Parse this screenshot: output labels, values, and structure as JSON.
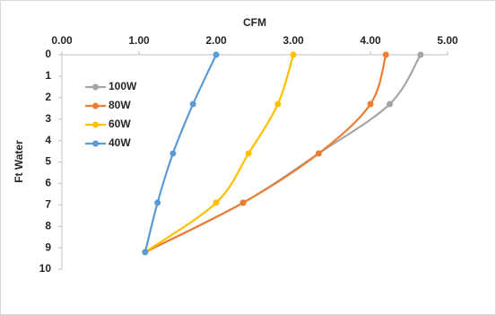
{
  "chart_data": {
    "type": "line",
    "title": "CFM",
    "y_label": "Ft Water",
    "xlim": [
      0,
      5
    ],
    "xticks": [
      {
        "value": 0,
        "label": "0.00"
      },
      {
        "value": 1,
        "label": "1.00"
      },
      {
        "value": 2,
        "label": "2.00"
      },
      {
        "value": 3,
        "label": "3.00"
      },
      {
        "value": 4,
        "label": "4.00"
      },
      {
        "value": 5,
        "label": "5.00"
      }
    ],
    "ylim": [
      0,
      10
    ],
    "yticks": [
      0,
      1,
      2,
      3,
      4,
      5,
      6,
      7,
      8,
      9,
      10
    ],
    "y_inverted": true,
    "x_axis_top": true,
    "series": [
      {
        "name": "100W",
        "color": "#a5a5a5",
        "x": [
          4.65,
          4.25,
          3.33,
          2.35,
          1.08
        ],
        "values": [
          0,
          2.3,
          4.6,
          6.9,
          9.2
        ]
      },
      {
        "name": "80W",
        "color": "#ed7d31",
        "x": [
          4.2,
          4.0,
          3.33,
          2.35,
          1.08
        ],
        "values": [
          0,
          2.3,
          4.6,
          6.9,
          9.2
        ]
      },
      {
        "name": "60W",
        "color": "#ffc000",
        "x": [
          3.0,
          2.8,
          2.42,
          2.0,
          1.08
        ],
        "values": [
          0,
          2.3,
          4.6,
          6.9,
          9.2
        ]
      },
      {
        "name": "40W",
        "color": "#5b9bd5",
        "x": [
          2.0,
          1.7,
          1.44,
          1.24,
          1.08
        ],
        "values": [
          0,
          2.3,
          4.6,
          6.9,
          9.2
        ]
      }
    ]
  }
}
